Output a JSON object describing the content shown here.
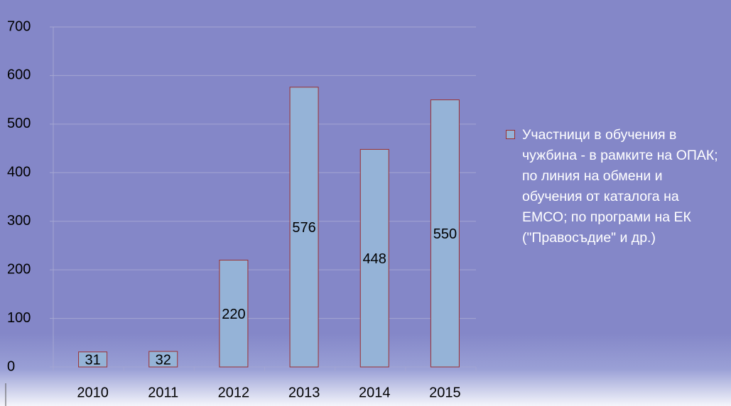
{
  "chart_data": {
    "type": "bar",
    "categories": [
      "2010",
      "2011",
      "2012",
      "2013",
      "2014",
      "2015"
    ],
    "series": [
      {
        "name": "Участници в обучения в чужбина - в рамките на ОПАК; по линия на обмени и обучения от каталога на ЕМСО; по програми на ЕК (\"Правосъдие\" и др.)",
        "color": "#95b3d7",
        "values": [
          31,
          32,
          220,
          576,
          448,
          550
        ]
      }
    ],
    "ylim": [
      0,
      700
    ],
    "yticks": [
      0,
      100,
      200,
      300,
      400,
      500,
      600,
      700
    ],
    "grid": true,
    "legend": "right"
  }
}
